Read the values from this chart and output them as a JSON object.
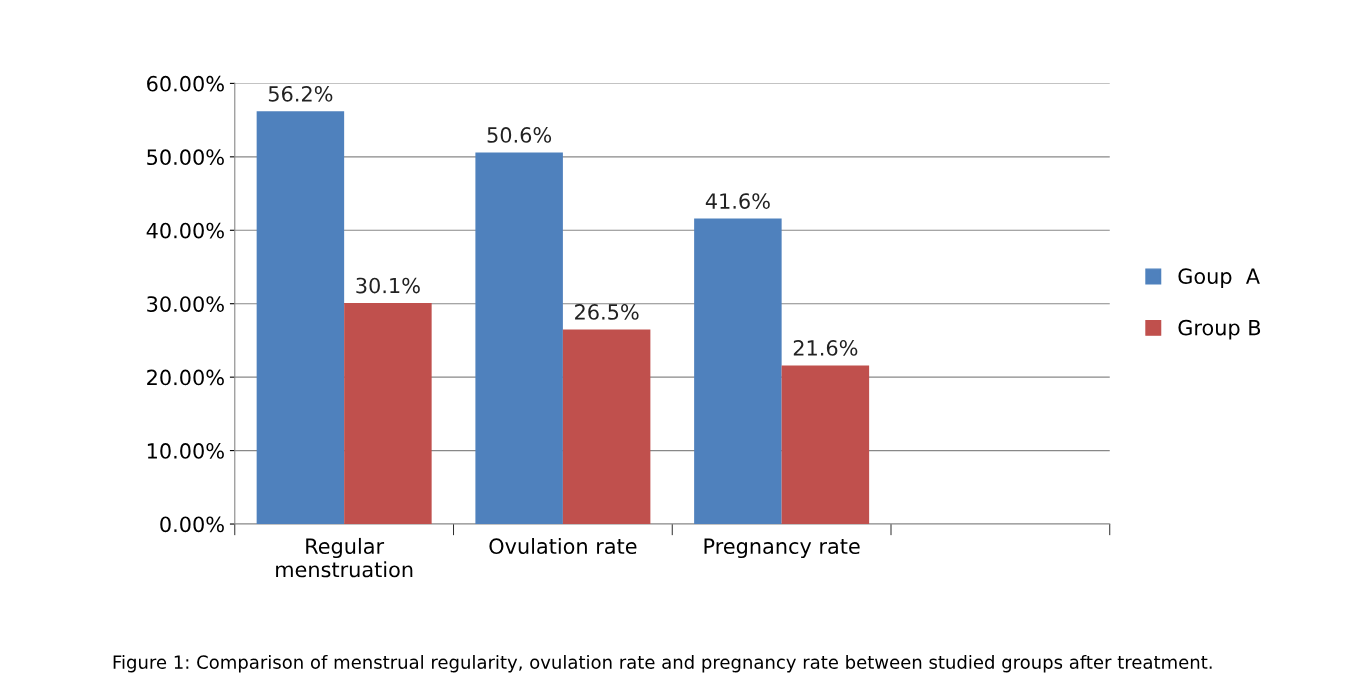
{
  "chart_data": {
    "type": "bar",
    "categories": [
      "Regular\nmenstruation",
      "Ovulation rate",
      "Pregnancy rate",
      null
    ],
    "series": [
      {
        "name": "Goup  A",
        "color": "#4f81bd",
        "values": [
          56.2,
          50.6,
          41.6,
          null
        ],
        "value_labels": [
          "56.2%",
          "50.6%",
          "41.6%",
          null
        ]
      },
      {
        "name": "Group B",
        "color": "#c0504d",
        "values": [
          30.1,
          26.5,
          21.6,
          null
        ],
        "value_labels": [
          "30.1%",
          "26.5%",
          "21.6%",
          null
        ]
      }
    ],
    "ylim": [
      0,
      60
    ],
    "yticks": [
      {
        "value": 0,
        "label": "0.00%"
      },
      {
        "value": 10,
        "label": "10.00%"
      },
      {
        "value": 20,
        "label": "20.00%"
      },
      {
        "value": 30,
        "label": "30.00%"
      },
      {
        "value": 40,
        "label": "40.00%"
      },
      {
        "value": 50,
        "label": "50.00%"
      },
      {
        "value": 60,
        "label": "60.00%"
      }
    ],
    "grid": "y",
    "legend": "right",
    "annotations": [
      "Figure 1: Comparison of menstrual regularity, ovulation rate and pregnancy rate between studied groups after treatment."
    ]
  }
}
